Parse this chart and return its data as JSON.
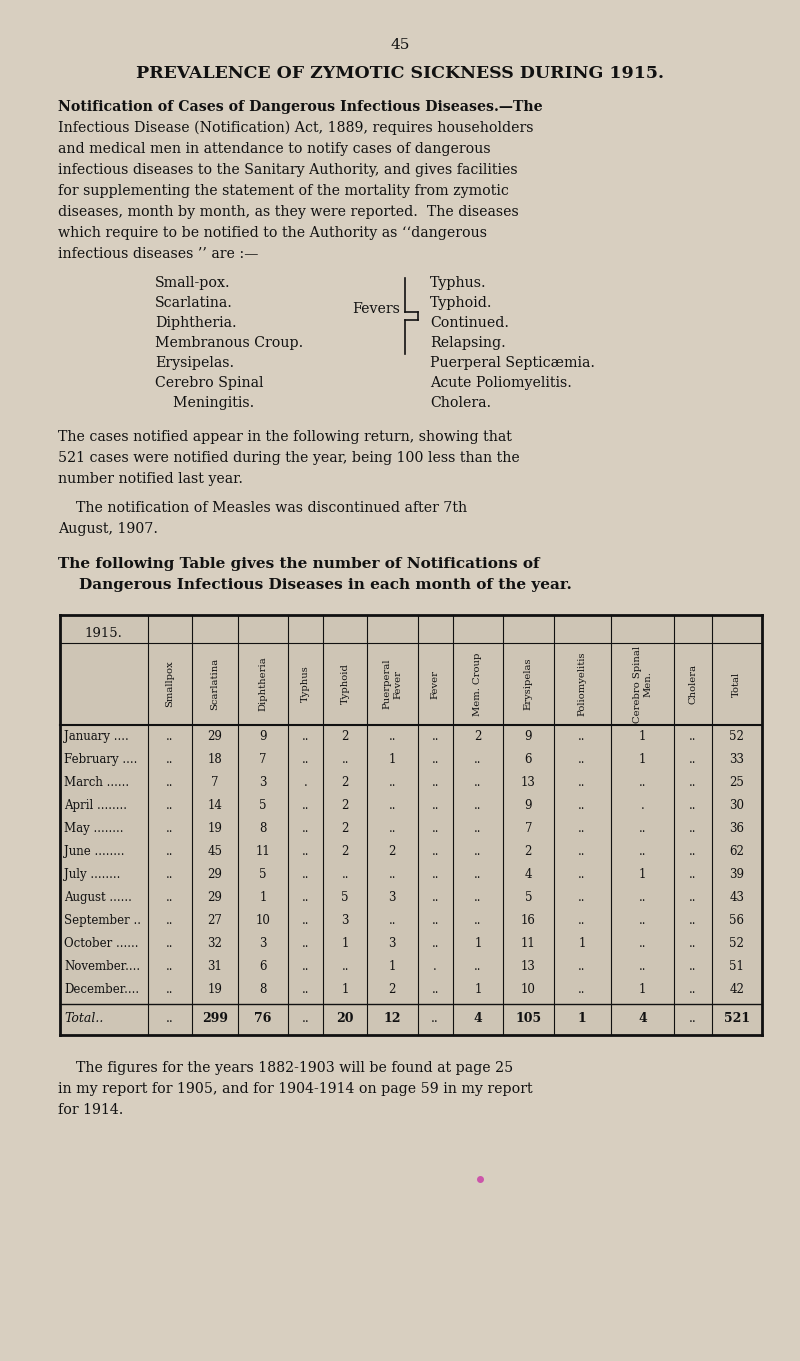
{
  "page_number": "45",
  "title": "PREVALENCE OF ZYMOTIC SICKNESS DURING 1915.",
  "para1_lines": [
    "Notification of Cases of Dangerous Infectious Diseases.—The",
    "Infectious Disease (Notification) Act, 1889, requires householders",
    "and medical men in attendance to notify cases of dangerous",
    "infectious diseases to the Sanitary Authority, and gives facilities",
    "for supplementing the statement of the mortality from zymotic",
    "diseases, month by month, as they were reported.  The diseases",
    "which require to be notified to the Authority as ‘‘dangerous",
    "infectious diseases ’’ are :—"
  ],
  "disease_left": [
    "Small-pox.",
    "Scarlatina.",
    "Diphtheria.",
    "Membranous Croup.",
    "Erysipelas.",
    "Cerebro Spinal",
    "    Meningitis."
  ],
  "fevers_label": "Fevers",
  "fever_items": [
    "Typhus.",
    "Typhoid.",
    "Continued.",
    "Relapsing."
  ],
  "disease_right_extra": [
    "Puerperal Septicæmia.",
    "Acute Poliomyelitis.",
    "Cholera."
  ],
  "para2_lines": [
    "The cases notified appear in the following return, showing that",
    "521 cases were notified during the year, being 100 less than the",
    "number notified last year."
  ],
  "para3_lines": [
    "    The notification of Measles was discontinued after 7th",
    "August, 1907."
  ],
  "para4_lines": [
    "The following Table gives the number of Notifications of",
    "    Dangerous Infectious Diseases in each month of the year."
  ],
  "table_year": "1915.",
  "col_headers": [
    "Smallpox",
    "Scarlatina",
    "Diphtheria",
    "Typhus",
    "Typhoid",
    "Puerperal\nFever",
    "Fever",
    "Mem. Croup",
    "Erysipelas",
    "Poliomyelitis",
    "Cerebro Spinal\nMen.",
    "Cholera",
    "Total"
  ],
  "months": [
    "January ....",
    "February ....",
    "March ......",
    "April ........",
    "May ........",
    "June ........",
    "July ........",
    "August ......",
    "September ..",
    "October ......",
    "November....",
    "December...."
  ],
  "table_data": [
    [
      "..",
      "29",
      "9",
      "..",
      "2",
      "..",
      "..",
      "2",
      "9",
      "..",
      "1",
      "..",
      "52"
    ],
    [
      "..",
      "18",
      "7",
      "..",
      "..",
      "1",
      "..",
      "..",
      "6",
      "..",
      "1",
      "..",
      "33"
    ],
    [
      "..",
      "7",
      "3",
      ".",
      "2",
      "..",
      "..",
      "..",
      "13",
      "..",
      "..",
      "..",
      "25"
    ],
    [
      "..",
      "14",
      "5",
      "..",
      "2",
      "..",
      "..",
      "..",
      "9",
      "..",
      ".",
      "..",
      "30"
    ],
    [
      "..",
      "19",
      "8",
      "..",
      "2",
      "..",
      "..",
      "..",
      "7",
      "..",
      "..",
      "..",
      "36"
    ],
    [
      "..",
      "45",
      "11",
      "..",
      "2",
      "2",
      "..",
      "..",
      "2",
      "..",
      "..",
      "..",
      "62"
    ],
    [
      "..",
      "29",
      "5",
      "..",
      "..",
      "..",
      "..",
      "..",
      "4",
      "..",
      "1",
      "..",
      "39"
    ],
    [
      "..",
      "29",
      "1",
      "..",
      "5",
      "3",
      "..",
      "..",
      "5",
      "..",
      "..",
      "..",
      "43"
    ],
    [
      "..",
      "27",
      "10",
      "..",
      "3",
      "..",
      "..",
      "..",
      "16",
      "..",
      "..",
      "..",
      "56"
    ],
    [
      "..",
      "32",
      "3",
      "..",
      "1",
      "3",
      "..",
      "1",
      "11",
      "1",
      "..",
      "..",
      "52"
    ],
    [
      "..",
      "31",
      "6",
      "..",
      "..",
      "1",
      ".",
      "..",
      "13",
      "..",
      "..",
      "..",
      "51"
    ],
    [
      "..",
      "19",
      "8",
      "..",
      "1",
      "2",
      "..",
      "1",
      "10",
      "..",
      "1",
      "..",
      "42"
    ]
  ],
  "totals_row": [
    "..",
    "299",
    "76",
    "..",
    "20",
    "12",
    "..",
    "4",
    "105",
    "1",
    "4",
    "..",
    "521"
  ],
  "footer_lines": [
    "    The figures for the years 1882-1903 will be found at page 25",
    "in my report for 1905, and for 1904-1914 on page 59 in my report",
    "for 1914."
  ],
  "bg_color": "#d8cfc0",
  "text_color": "#111111",
  "table_bg": "#cec5b5"
}
